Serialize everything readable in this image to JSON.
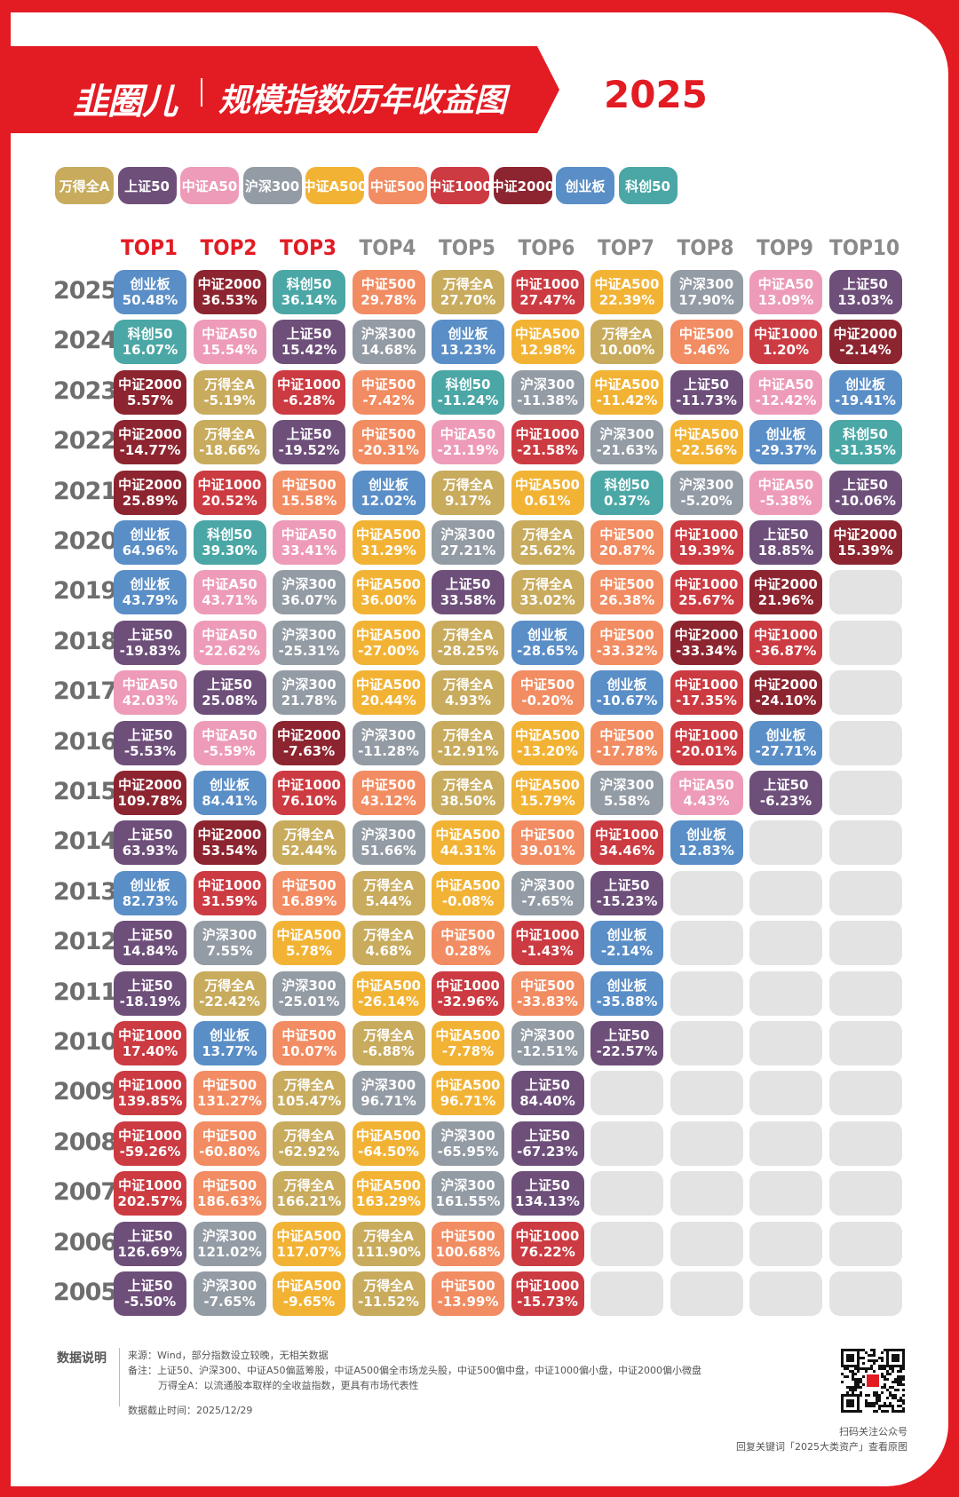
{
  "header": {
    "logo": "韭圈儿",
    "title": "规模指数历年收益图",
    "year": "2025"
  },
  "colors": {
    "万得全A": "#c8ab5d",
    "上证50": "#6e4f7a",
    "中证A50": "#ed9bb8",
    "沪深300": "#939ba4",
    "中证A500": "#f2b335",
    "中证500": "#f28c62",
    "中证1000": "#cc3b42",
    "中证2000": "#8c2530",
    "创业板": "#5a8ec7",
    "科创50": "#4ba7a6",
    "empty": "#e3e3e3",
    "top_header": "#e31b23",
    "other_header": "#8a8a8a"
  },
  "chart_data": {
    "type": "table",
    "title": "规模指数历年收益图",
    "legend": [
      "万得全A",
      "上证50",
      "中证A50",
      "沪深300",
      "中证A500",
      "中证500",
      "中证1000",
      "中证2000",
      "创业板",
      "科创50"
    ],
    "columns": [
      "TOP1",
      "TOP2",
      "TOP3",
      "TOP4",
      "TOP5",
      "TOP6",
      "TOP7",
      "TOP8",
      "TOP9",
      "TOP10"
    ],
    "rows": [
      {
        "year": "2025",
        "cells": [
          [
            "创业板",
            "50.48%"
          ],
          [
            "中证2000",
            "36.53%"
          ],
          [
            "科创50",
            "36.14%"
          ],
          [
            "中证500",
            "29.78%"
          ],
          [
            "万得全A",
            "27.70%"
          ],
          [
            "中证1000",
            "27.47%"
          ],
          [
            "中证A500",
            "22.39%"
          ],
          [
            "沪深300",
            "17.90%"
          ],
          [
            "中证A50",
            "13.09%"
          ],
          [
            "上证50",
            "13.03%"
          ]
        ]
      },
      {
        "year": "2024",
        "cells": [
          [
            "科创50",
            "16.07%"
          ],
          [
            "中证A50",
            "15.54%"
          ],
          [
            "上证50",
            "15.42%"
          ],
          [
            "沪深300",
            "14.68%"
          ],
          [
            "创业板",
            "13.23%"
          ],
          [
            "中证A500",
            "12.98%"
          ],
          [
            "万得全A",
            "10.00%"
          ],
          [
            "中证500",
            "5.46%"
          ],
          [
            "中证1000",
            "1.20%"
          ],
          [
            "中证2000",
            "-2.14%"
          ]
        ]
      },
      {
        "year": "2023",
        "cells": [
          [
            "中证2000",
            "5.57%"
          ],
          [
            "万得全A",
            "-5.19%"
          ],
          [
            "中证1000",
            "-6.28%"
          ],
          [
            "中证500",
            "-7.42%"
          ],
          [
            "科创50",
            "-11.24%"
          ],
          [
            "沪深300",
            "-11.38%"
          ],
          [
            "中证A500",
            "-11.42%"
          ],
          [
            "上证50",
            "-11.73%"
          ],
          [
            "中证A50",
            "-12.42%"
          ],
          [
            "创业板",
            "-19.41%"
          ]
        ]
      },
      {
        "year": "2022",
        "cells": [
          [
            "中证2000",
            "-14.77%"
          ],
          [
            "万得全A",
            "-18.66%"
          ],
          [
            "上证50",
            "-19.52%"
          ],
          [
            "中证500",
            "-20.31%"
          ],
          [
            "中证A50",
            "-21.19%"
          ],
          [
            "中证1000",
            "-21.58%"
          ],
          [
            "沪深300",
            "-21.63%"
          ],
          [
            "中证A500",
            "-22.56%"
          ],
          [
            "创业板",
            "-29.37%"
          ],
          [
            "科创50",
            "-31.35%"
          ]
        ]
      },
      {
        "year": "2021",
        "cells": [
          [
            "中证2000",
            "25.89%"
          ],
          [
            "中证1000",
            "20.52%"
          ],
          [
            "中证500",
            "15.58%"
          ],
          [
            "创业板",
            "12.02%"
          ],
          [
            "万得全A",
            "9.17%"
          ],
          [
            "中证A500",
            "0.61%"
          ],
          [
            "科创50",
            "0.37%"
          ],
          [
            "沪深300",
            "-5.20%"
          ],
          [
            "中证A50",
            "-5.38%"
          ],
          [
            "上证50",
            "-10.06%"
          ]
        ]
      },
      {
        "year": "2020",
        "cells": [
          [
            "创业板",
            "64.96%"
          ],
          [
            "科创50",
            "39.30%"
          ],
          [
            "中证A50",
            "33.41%"
          ],
          [
            "中证A500",
            "31.29%"
          ],
          [
            "沪深300",
            "27.21%"
          ],
          [
            "万得全A",
            "25.62%"
          ],
          [
            "中证500",
            "20.87%"
          ],
          [
            "中证1000",
            "19.39%"
          ],
          [
            "上证50",
            "18.85%"
          ],
          [
            "中证2000",
            "15.39%"
          ]
        ]
      },
      {
        "year": "2019",
        "cells": [
          [
            "创业板",
            "43.79%"
          ],
          [
            "中证A50",
            "43.71%"
          ],
          [
            "沪深300",
            "36.07%"
          ],
          [
            "中证A500",
            "36.00%"
          ],
          [
            "上证50",
            "33.58%"
          ],
          [
            "万得全A",
            "33.02%"
          ],
          [
            "中证500",
            "26.38%"
          ],
          [
            "中证1000",
            "25.67%"
          ],
          [
            "中证2000",
            "21.96%"
          ]
        ]
      },
      {
        "year": "2018",
        "cells": [
          [
            "上证50",
            "-19.83%"
          ],
          [
            "中证A50",
            "-22.62%"
          ],
          [
            "沪深300",
            "-25.31%"
          ],
          [
            "中证A500",
            "-27.00%"
          ],
          [
            "万得全A",
            "-28.25%"
          ],
          [
            "创业板",
            "-28.65%"
          ],
          [
            "中证500",
            "-33.32%"
          ],
          [
            "中证2000",
            "-33.34%"
          ],
          [
            "中证1000",
            "-36.87%"
          ]
        ]
      },
      {
        "year": "2017",
        "cells": [
          [
            "中证A50",
            "42.03%"
          ],
          [
            "上证50",
            "25.08%"
          ],
          [
            "沪深300",
            "21.78%"
          ],
          [
            "中证A500",
            "20.44%"
          ],
          [
            "万得全A",
            "4.93%"
          ],
          [
            "中证500",
            "-0.20%"
          ],
          [
            "创业板",
            "-10.67%"
          ],
          [
            "中证1000",
            "-17.35%"
          ],
          [
            "中证2000",
            "-24.10%"
          ]
        ]
      },
      {
        "year": "2016",
        "cells": [
          [
            "上证50",
            "-5.53%"
          ],
          [
            "中证A50",
            "-5.59%"
          ],
          [
            "中证2000",
            "-7.63%"
          ],
          [
            "沪深300",
            "-11.28%"
          ],
          [
            "万得全A",
            "-12.91%"
          ],
          [
            "中证A500",
            "-13.20%"
          ],
          [
            "中证500",
            "-17.78%"
          ],
          [
            "中证1000",
            "-20.01%"
          ],
          [
            "创业板",
            "-27.71%"
          ]
        ]
      },
      {
        "year": "2015",
        "cells": [
          [
            "中证2000",
            "109.78%"
          ],
          [
            "创业板",
            "84.41%"
          ],
          [
            "中证1000",
            "76.10%"
          ],
          [
            "中证500",
            "43.12%"
          ],
          [
            "万得全A",
            "38.50%"
          ],
          [
            "中证A500",
            "15.79%"
          ],
          [
            "沪深300",
            "5.58%"
          ],
          [
            "中证A50",
            "4.43%"
          ],
          [
            "上证50",
            "-6.23%"
          ]
        ]
      },
      {
        "year": "2014",
        "cells": [
          [
            "上证50",
            "63.93%"
          ],
          [
            "中证2000",
            "53.54%"
          ],
          [
            "万得全A",
            "52.44%"
          ],
          [
            "沪深300",
            "51.66%"
          ],
          [
            "中证A500",
            "44.31%"
          ],
          [
            "中证500",
            "39.01%"
          ],
          [
            "中证1000",
            "34.46%"
          ],
          [
            "创业板",
            "12.83%"
          ]
        ]
      },
      {
        "year": "2013",
        "cells": [
          [
            "创业板",
            "82.73%"
          ],
          [
            "中证1000",
            "31.59%"
          ],
          [
            "中证500",
            "16.89%"
          ],
          [
            "万得全A",
            "5.44%"
          ],
          [
            "中证A500",
            "-0.08%"
          ],
          [
            "沪深300",
            "-7.65%"
          ],
          [
            "上证50",
            "-15.23%"
          ]
        ]
      },
      {
        "year": "2012",
        "cells": [
          [
            "上证50",
            "14.84%"
          ],
          [
            "沪深300",
            "7.55%"
          ],
          [
            "中证A500",
            "5.78%"
          ],
          [
            "万得全A",
            "4.68%"
          ],
          [
            "中证500",
            "0.28%"
          ],
          [
            "中证1000",
            "-1.43%"
          ],
          [
            "创业板",
            "-2.14%"
          ]
        ]
      },
      {
        "year": "2011",
        "cells": [
          [
            "上证50",
            "-18.19%"
          ],
          [
            "万得全A",
            "-22.42%"
          ],
          [
            "沪深300",
            "-25.01%"
          ],
          [
            "中证A500",
            "-26.14%"
          ],
          [
            "中证1000",
            "-32.96%"
          ],
          [
            "中证500",
            "-33.83%"
          ],
          [
            "创业板",
            "-35.88%"
          ]
        ]
      },
      {
        "year": "2010",
        "cells": [
          [
            "中证1000",
            "17.40%"
          ],
          [
            "创业板",
            "13.77%"
          ],
          [
            "中证500",
            "10.07%"
          ],
          [
            "万得全A",
            "-6.88%"
          ],
          [
            "中证A500",
            "-7.78%"
          ],
          [
            "沪深300",
            "-12.51%"
          ],
          [
            "上证50",
            "-22.57%"
          ]
        ]
      },
      {
        "year": "2009",
        "cells": [
          [
            "中证1000",
            "139.85%"
          ],
          [
            "中证500",
            "131.27%"
          ],
          [
            "万得全A",
            "105.47%"
          ],
          [
            "沪深300",
            "96.71%"
          ],
          [
            "中证A500",
            "96.71%"
          ],
          [
            "上证50",
            "84.40%"
          ]
        ]
      },
      {
        "year": "2008",
        "cells": [
          [
            "中证1000",
            "-59.26%"
          ],
          [
            "中证500",
            "-60.80%"
          ],
          [
            "万得全A",
            "-62.92%"
          ],
          [
            "中证A500",
            "-64.50%"
          ],
          [
            "沪深300",
            "-65.95%"
          ],
          [
            "上证50",
            "-67.23%"
          ]
        ]
      },
      {
        "year": "2007",
        "cells": [
          [
            "中证1000",
            "202.57%"
          ],
          [
            "中证500",
            "186.63%"
          ],
          [
            "万得全A",
            "166.21%"
          ],
          [
            "中证A500",
            "163.29%"
          ],
          [
            "沪深300",
            "161.55%"
          ],
          [
            "上证50",
            "134.13%"
          ]
        ]
      },
      {
        "year": "2006",
        "cells": [
          [
            "上证50",
            "126.69%"
          ],
          [
            "沪深300",
            "121.02%"
          ],
          [
            "中证A500",
            "117.07%"
          ],
          [
            "万得全A",
            "111.90%"
          ],
          [
            "中证500",
            "100.68%"
          ],
          [
            "中证1000",
            "76.22%"
          ]
        ]
      },
      {
        "year": "2005",
        "cells": [
          [
            "上证50",
            "-5.50%"
          ],
          [
            "沪深300",
            "-7.65%"
          ],
          [
            "中证A500",
            "-9.65%"
          ],
          [
            "万得全A",
            "-11.52%"
          ],
          [
            "中证500",
            "-13.99%"
          ],
          [
            "中证1000",
            "-15.73%"
          ]
        ]
      }
    ]
  },
  "notes": {
    "title": "数据说明",
    "line1": "来源：Wind，部分指数设立较晚，无相关数据",
    "line2": "备注：上证50、沪深300、中证A50偏蓝筹股，中证A500偏全市场龙头股，中证500偏中盘，中证1000偏小盘，中证2000偏小微盘",
    "line3": "万得全A：以流通股本取样的全收益指数，更具有市场代表性",
    "line4": "数据截止时间：2025/12/29"
  },
  "footer": {
    "scan": "扫码关注公众号",
    "reply": "回复关键词「2025大类资产」查看原图"
  }
}
